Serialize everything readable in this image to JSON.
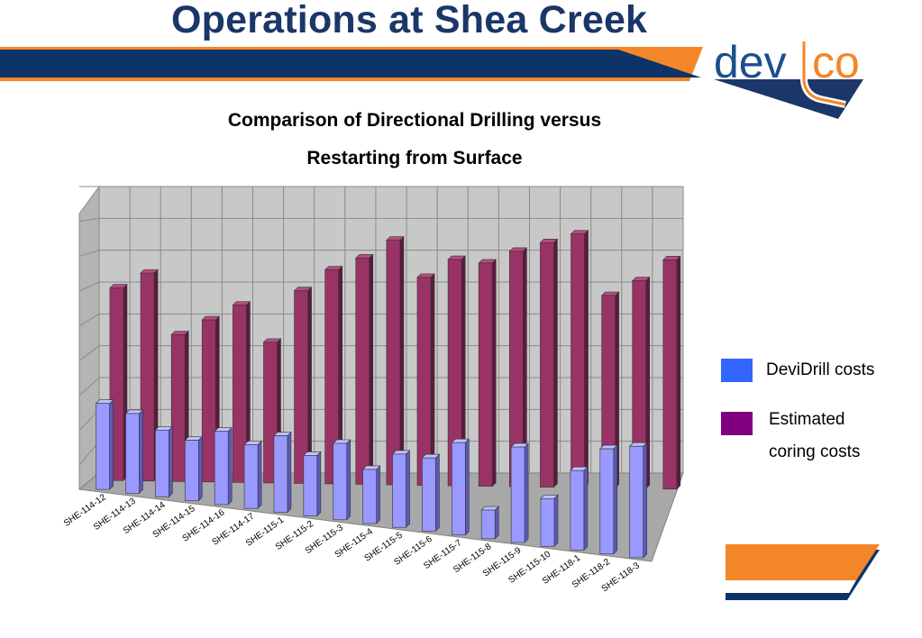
{
  "header": {
    "title": "Operations at Shea Creek",
    "band_color": "#0d3466",
    "accent_color": "#f4862a"
  },
  "logo": {
    "text_left": "dev",
    "text_right": "co",
    "color_blue": "#1b4f8c",
    "color_orange": "#f4862a"
  },
  "chart_data": {
    "type": "bar",
    "title_line1": "Comparison of Directional Drilling versus",
    "title_line2": "Restarting from Surface",
    "xlabel": "",
    "ylabel": "",
    "three_d": true,
    "grid": true,
    "legend_position": "right",
    "categories": [
      "SHE-114-12",
      "SHE-114-13",
      "SHE-114-14",
      "SHE-114-15",
      "SHE-114-16",
      "SHE-114-17",
      "SHE-115-1",
      "SHE-115-2",
      "SHE-115-3",
      "SHE-115-4",
      "SHE-115-5",
      "SHE-115-6",
      "SHE-115-7",
      "SHE-115-8",
      "SHE-115-9",
      "SHE-115-10",
      "SHE-118-1",
      "SHE-118-2",
      "SHE-118-3"
    ],
    "series": [
      {
        "name": "DeviDrill costs",
        "color": "#9999ff",
        "values": [
          2.7,
          2.5,
          2.1,
          1.9,
          2.3,
          2.0,
          2.4,
          1.9,
          2.4,
          1.7,
          2.3,
          2.3,
          2.9,
          0.9,
          3.0,
          1.5,
          2.5,
          3.3,
          3.5
        ]
      },
      {
        "name": "Estimated coring costs",
        "color": "#993366",
        "values": [
          6.3,
          6.8,
          4.8,
          5.3,
          5.8,
          4.6,
          6.3,
          7.0,
          7.4,
          8.0,
          6.8,
          7.4,
          7.3,
          7.7,
          8.0,
          8.3,
          6.3,
          6.8,
          7.5
        ]
      }
    ],
    "legend": {
      "item1": "DeviDrill costs",
      "item2_line1": "Estimated",
      "item2_line2": "coring costs",
      "swatch1": "#3366ff",
      "swatch2": "#800080"
    }
  }
}
